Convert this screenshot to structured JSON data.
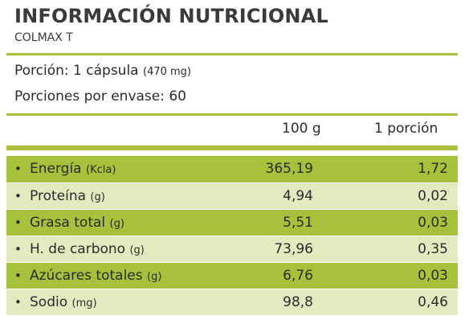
{
  "header": {
    "title": "INFORMACIÓN NUTRICIONAL",
    "product": "COLMAX T"
  },
  "serving": {
    "portion_label": "Porción: 1 cápsula",
    "portion_weight": "(470 mg)",
    "servings_label": "Porciones por envase: 60"
  },
  "columns": {
    "per_100g": "100 g",
    "per_portion": "1 porción"
  },
  "rows": [
    {
      "bullet": "•",
      "name": "Energía",
      "unit": "(Kcla)",
      "per_100g": "365,19",
      "per_portion": "1,72"
    },
    {
      "bullet": "•",
      "name": "Proteína",
      "unit": "(g)",
      "per_100g": "4,94",
      "per_portion": "0,02"
    },
    {
      "bullet": "•",
      "name": "Grasa total",
      "unit": "(g)",
      "per_100g": "5,51",
      "per_portion": "0,03"
    },
    {
      "bullet": "•",
      "name": "H. de carbono",
      "unit": "(g)",
      "per_100g": "73,96",
      "per_portion": "0,35"
    },
    {
      "bullet": "•",
      "name": "Azúcares totales",
      "unit": "(g)",
      "per_100g": "6,76",
      "per_portion": "0,03"
    },
    {
      "bullet": "•",
      "name": "Sodio",
      "unit": "(mg)",
      "per_100g": "98,8",
      "per_portion": "0,46"
    }
  ],
  "colors": {
    "accent_green": "#a6c13c",
    "light_green": "#e2ebc0"
  }
}
